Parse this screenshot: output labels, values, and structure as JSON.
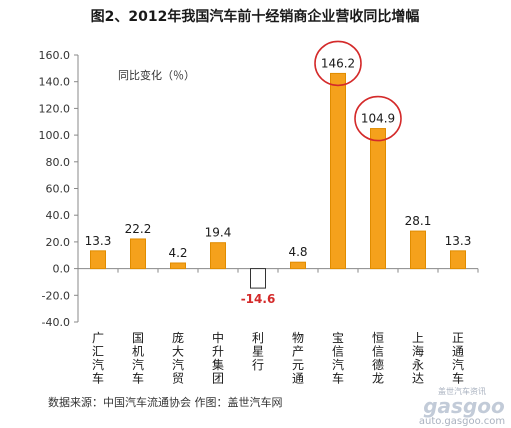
{
  "chart_data": {
    "type": "bar",
    "title": "图2、2012年我国汽车前十经销商企业营收同比增幅",
    "unit_label": "同比变化（％）",
    "categories": [
      "广汇汽车",
      "国机汽车",
      "庞大汽贸",
      "中升集团",
      "利星行",
      "物产元通",
      "宝信汽车",
      "恒信德龙",
      "上海永达",
      "正通汽车"
    ],
    "values": [
      13.3,
      22.2,
      4.2,
      19.4,
      -14.6,
      4.8,
      146.2,
      104.9,
      28.1,
      13.3
    ],
    "value_labels": [
      "13.3",
      "22.2",
      "4.2",
      "19.4",
      "-14.6",
      "4.8",
      "146.2",
      "104.9",
      "28.1",
      "13.3"
    ],
    "ylim": [
      -40,
      160
    ],
    "yticks": [
      "-40.0",
      "-20.0",
      "0.0",
      "20.0",
      "40.0",
      "60.0",
      "80.0",
      "100.0",
      "120.0",
      "140.0",
      "160.0"
    ],
    "xlabel": "",
    "ylabel": "",
    "grid": false,
    "highlighted": [
      "宝信汽车",
      "恒信德龙"
    ],
    "colors": {
      "bar": "#f5a11c",
      "bar_edge": "#e08c00",
      "negative_bar": "#ffffff",
      "negative_edge": "#333333",
      "negative_label": "#d42a2a",
      "highlight_circle": "#d42a2a"
    }
  },
  "footer": {
    "source": "数据来源：中国汽车流通协会  作图：盖世汽车网"
  },
  "watermark": {
    "cn": "盖世汽车资讯",
    "brand": "gasgoo",
    "url": "auto.gasgoo.com"
  }
}
